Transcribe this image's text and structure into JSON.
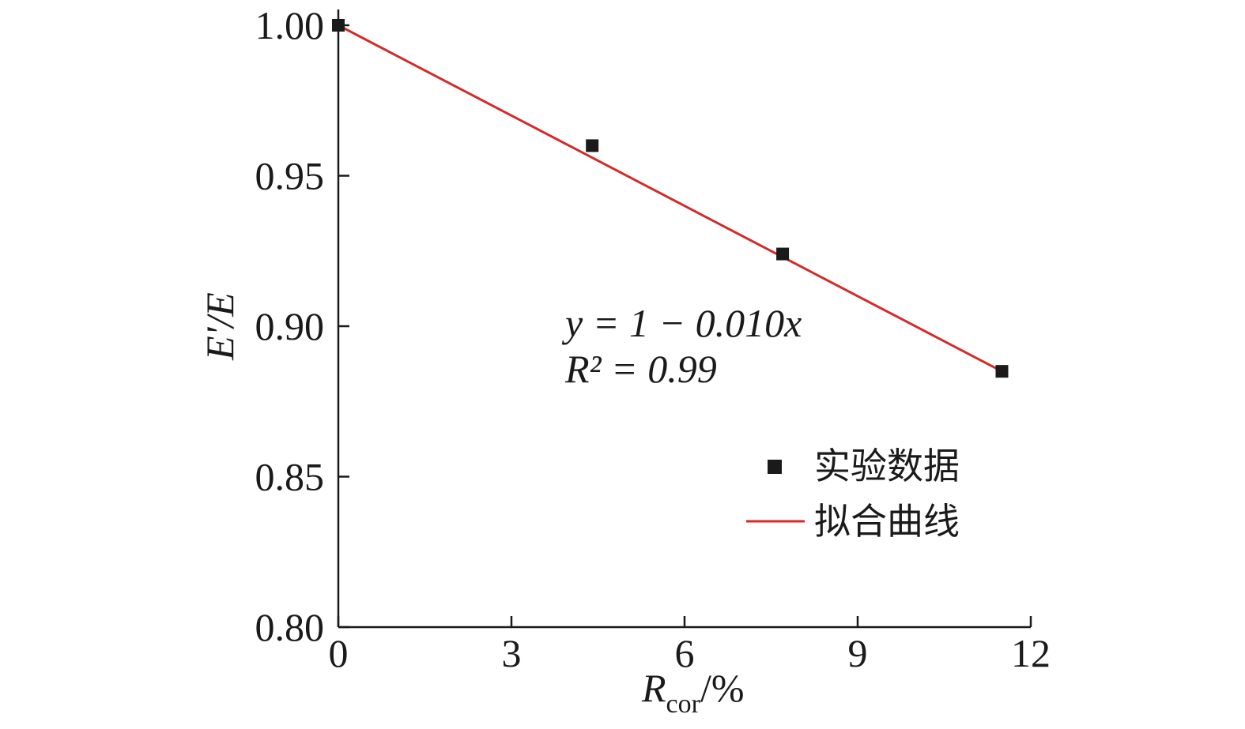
{
  "chart_data": {
    "type": "scatter",
    "xlabel": "R",
    "xlabel_sub": "cor",
    "xlabel_suffix": "/%",
    "ylabel": "E'/E",
    "xlim": [
      0,
      12
    ],
    "ylim": [
      0.8,
      1.0
    ],
    "xticks": [
      0,
      3,
      6,
      9,
      12
    ],
    "xtick_labels": [
      "0",
      "3",
      "6",
      "9",
      "12"
    ],
    "yticks": [
      0.8,
      0.85,
      0.9,
      0.95,
      1.0
    ],
    "ytick_labels": [
      "0.80",
      "0.85",
      "0.90",
      "0.95",
      "1.00"
    ],
    "grid": false,
    "legend_position": "bottom-right",
    "series": [
      {
        "name": "实验数据",
        "kind": "scatter",
        "marker": "square",
        "color": "#1a1a1a",
        "x": [
          0,
          4.4,
          7.7,
          11.5
        ],
        "y": [
          1.0,
          0.96,
          0.924,
          0.885
        ]
      },
      {
        "name": "拟合曲线",
        "kind": "line",
        "color": "#d42a2a",
        "x": [
          0,
          11.5
        ],
        "y": [
          1.0,
          0.885
        ]
      }
    ],
    "annotations": {
      "equation": "y = 1 − 0.010x",
      "r_squared": "R² = 0.99"
    }
  }
}
